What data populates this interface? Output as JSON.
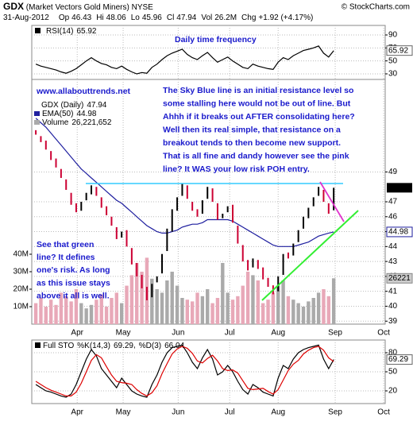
{
  "header": {
    "symbol": "GDX",
    "name": "(Market Vectors Gold Miners)",
    "exchange": "NYSE",
    "credit": "© StockCharts.com",
    "date": "31-Aug-2012",
    "stats": [
      {
        "label": "Op",
        "value": "46.43"
      },
      {
        "label": "Hi",
        "value": "48.06"
      },
      {
        "label": "Lo",
        "value": "45.96"
      },
      {
        "label": "Cl",
        "value": "47.94"
      },
      {
        "label": "Vol",
        "value": "26.2M"
      },
      {
        "label": "Chg",
        "value": "+1.92 (+4.17%)"
      }
    ]
  },
  "annotations": {
    "frequency": "Daily time frequency",
    "site": "www.allabouttrends.net",
    "paragraph": [
      "The Sky Blue line is an initial resistance level so",
      "some stalling here would not be out of line. But",
      "Ahhh if it breaks out AFTER consolidating here?",
      "Well then its real simple, that resistance on a",
      "breakout tends to then become new support.",
      "That is all fine and dandy however see the pink",
      "line? It WAS your low risk POH entry."
    ],
    "green_note": [
      "See that green",
      "line? It defines",
      "one's risk. As long",
      "as this issue stays",
      "above it all is well."
    ]
  },
  "chart_data": [
    {
      "type": "line",
      "series": [
        {
          "name": "RSI(14)",
          "color": "#000000",
          "values": [
            45,
            42,
            40,
            38,
            36,
            33,
            31,
            34,
            38,
            44,
            50,
            55,
            50,
            46,
            44,
            40,
            38,
            42,
            37,
            33,
            30,
            32,
            31,
            40,
            45,
            52,
            58,
            62,
            65,
            68,
            60,
            55,
            52,
            58,
            63,
            55,
            48,
            52,
            56,
            50,
            45,
            40,
            38,
            45,
            42,
            40,
            38,
            37,
            48,
            55,
            52,
            58,
            62,
            66,
            68,
            70,
            73,
            62,
            56,
            65.92
          ]
        }
      ],
      "xlim": [
        -0.8,
        69.2
      ],
      "ylim": [
        21.4,
        104.7
      ],
      "yticks": [
        30,
        50,
        70,
        90
      ],
      "grid": true
    },
    {
      "type": "candlestick",
      "title": "GDX (Daily)",
      "open": [
        51.8,
        51.4,
        51.1,
        50.4,
        49.9,
        49.2,
        48.5,
        47.6,
        46.9,
        46.4,
        47.1,
        47.5,
        48.0,
        47.3,
        46.7,
        46.0,
        45.3,
        44.6,
        45.1,
        43.9,
        42.9,
        42.1,
        41.3,
        40.6,
        41.6,
        42.2,
        43.7,
        45.0,
        46.4,
        47.4,
        48.1,
        47.0,
        46.5,
        46.2,
        47.2,
        47.9,
        46.9,
        45.9,
        46.3,
        46.8,
        45.4,
        44.1,
        43.1,
        42.6,
        43.1,
        42.6,
        41.9,
        41.4,
        41.0,
        42.1,
        43.6,
        43.4,
        44.3,
        45.2,
        45.9,
        46.7,
        47.4,
        47.8,
        46.9,
        46.43
      ],
      "close": [
        51.5,
        51,
        50.5,
        49.8,
        49.3,
        48.6,
        47.8,
        46.8,
        46.3,
        47,
        47.6,
        48.1,
        47.4,
        46.6,
        46.1,
        45.4,
        44.5,
        45,
        44,
        42.8,
        42,
        41.2,
        40.4,
        41.5,
        42,
        43.5,
        45.2,
        46.5,
        47.3,
        48.2,
        47.2,
        46.4,
        46,
        47.1,
        48,
        47,
        45.8,
        46.2,
        46.7,
        45.6,
        44.2,
        43,
        42.4,
        43.2,
        42.5,
        41.8,
        41.3,
        40.8,
        42,
        43.5,
        43.2,
        44.2,
        45.1,
        46,
        46.6,
        47.3,
        48,
        47,
        46.2,
        47.94
      ],
      "up_color": "#000000",
      "down_color": "#cc0033",
      "series": [
        {
          "name": "EMA(50)",
          "color": "#1f1f9f",
          "values": [
            52.6,
            52.3,
            52.0,
            51.6,
            51.2,
            50.8,
            50.4,
            50.0,
            49.6,
            49.2,
            48.9,
            48.6,
            48.3,
            48.0,
            47.7,
            47.4,
            47.1,
            46.9,
            46.6,
            46.3,
            46.0,
            45.7,
            45.4,
            45.2,
            45.0,
            44.9,
            44.9,
            45.0,
            45.1,
            45.3,
            45.4,
            45.5,
            45.5,
            45.6,
            45.8,
            45.8,
            45.8,
            45.8,
            45.8,
            45.7,
            45.5,
            45.3,
            45.1,
            44.9,
            44.7,
            44.5,
            44.3,
            44.1,
            44.0,
            44.0,
            44.0,
            44.0,
            44.1,
            44.2,
            44.3,
            44.5,
            44.7,
            44.8,
            44.9,
            44.98
          ]
        },
        {
          "name": "Volume",
          "axis": "y2",
          "up_color": "#aaaaaa",
          "down_color": "#e8a8b8",
          "legend_value": "26,221,652",
          "box_value": "26221",
          "values": [
            12,
            15,
            10,
            14,
            11,
            18,
            16,
            13,
            20,
            12,
            9,
            11,
            14,
            17,
            10,
            15,
            18,
            12,
            22,
            28,
            35,
            30,
            38,
            26,
            20,
            18,
            25,
            30,
            22,
            15,
            14,
            13,
            18,
            16,
            20,
            12,
            15,
            35,
            18,
            14,
            16,
            22,
            30,
            28,
            25,
            12,
            14,
            18,
            22,
            25,
            16,
            14,
            12,
            10,
            13,
            15,
            18,
            20,
            16,
            26.221652
          ]
        }
      ],
      "xlim": [
        -0.8,
        69.2
      ],
      "xticks": [
        {
          "value": 8.2,
          "label": "Apr"
        },
        {
          "value": 17.3,
          "label": "May"
        },
        {
          "value": 28.2,
          "label": "Jun"
        },
        {
          "value": 38.4,
          "label": "Jul"
        },
        {
          "value": 48.0,
          "label": "Aug"
        },
        {
          "value": 59.3,
          "label": "Sep"
        },
        {
          "value": 68.9,
          "label": "Oct"
        }
      ],
      "ylim": [
        38.8,
        55.2
      ],
      "yticks": [
        39,
        40,
        41,
        42,
        43,
        44,
        45,
        46,
        47,
        49
      ],
      "y2lim": [
        0,
        140
      ],
      "y2ticks": [
        {
          "value": 10,
          "label": "10M"
        },
        {
          "value": 20,
          "label": "20M"
        },
        {
          "value": 30,
          "label": "30M"
        },
        {
          "value": 40,
          "label": "40M"
        }
      ],
      "grid": true
    },
    {
      "type": "line",
      "title": "Full STO",
      "series": [
        {
          "name": "%K(14,3)",
          "color": "#000000",
          "values": [
            30,
            25,
            20,
            18,
            15,
            12,
            10,
            15,
            30,
            50,
            70,
            85,
            75,
            55,
            45,
            35,
            25,
            40,
            30,
            20,
            15,
            12,
            10,
            30,
            45,
            65,
            80,
            88,
            90,
            92,
            80,
            65,
            55,
            72,
            85,
            70,
            45,
            50,
            60,
            50,
            35,
            22,
            15,
            30,
            25,
            18,
            15,
            12,
            40,
            60,
            55,
            70,
            80,
            85,
            88,
            90,
            92,
            70,
            55,
            69.29
          ]
        },
        {
          "name": "%D(3)",
          "color": "#dd0000",
          "values": [
            35,
            30,
            25,
            21,
            18,
            15,
            12,
            12,
            18,
            32,
            50,
            68,
            77,
            72,
            58,
            45,
            35,
            33,
            32,
            30,
            22,
            16,
            12,
            17,
            28,
            47,
            63,
            78,
            86,
            90,
            87,
            79,
            67,
            64,
            71,
            76,
            67,
            55,
            52,
            53,
            48,
            36,
            24,
            22,
            23,
            24,
            19,
            15,
            22,
            37,
            52,
            62,
            68,
            78,
            84,
            88,
            90,
            84,
            72,
            66.04
          ]
        }
      ],
      "xlim": [
        -0.8,
        69.2
      ],
      "xticks": [
        {
          "value": 8.2,
          "label": "Apr"
        },
        {
          "value": 17.3,
          "label": "May"
        },
        {
          "value": 28.2,
          "label": "Jun"
        },
        {
          "value": 38.4,
          "label": "Jul"
        },
        {
          "value": 48.0,
          "label": "Aug"
        },
        {
          "value": 59.3,
          "label": "Sep"
        },
        {
          "value": 68.9,
          "label": "Oct"
        }
      ],
      "ylim": [
        0,
        100
      ],
      "yticks": [
        20,
        50,
        80
      ],
      "grid": true
    }
  ]
}
